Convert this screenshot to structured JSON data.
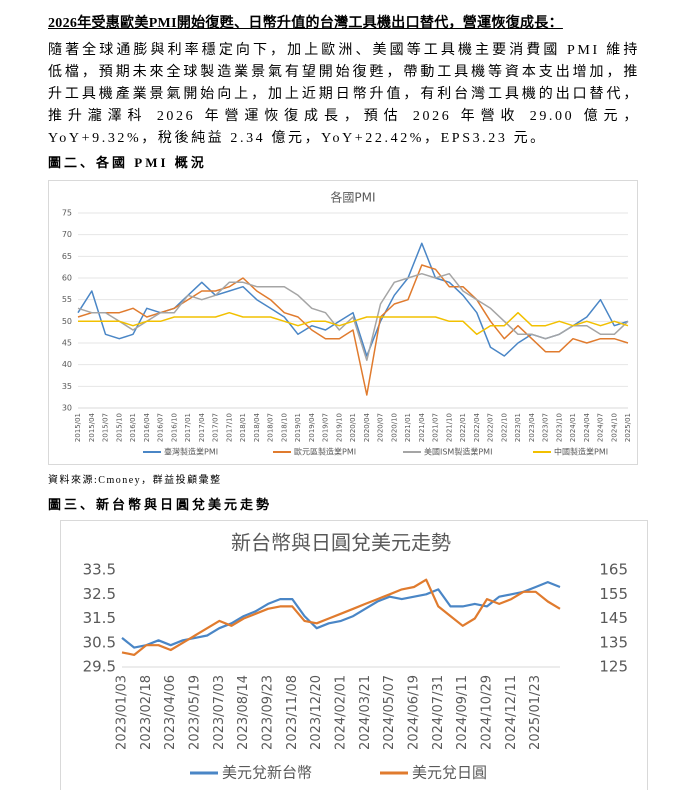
{
  "document": {
    "title": "2026年受惠歐美PMI開始復甦、日幣升值的台灣工具機出口替代，營運恢復成長：",
    "paragraph": "隨著全球通膨與利率穩定向下，加上歐洲、美國等工具機主要消費國 PMI 維持低檔，預期未來全球製造業景氣有望開始復甦，帶動工具機等資本支出增加，推升工具機產業景氣開始向上，加上近期日幣升值，有利台灣工具機的出口替代，推升瀧澤科 2026 年營運恢復成長，預估 2026 年營收 29.00 億元，YoY+9.32%，稅後純益 2.34 億元，YoY+22.42%，EPS3.23 元。",
    "figure2_caption": "圖二、各國 PMI 概況",
    "source": "資料來源:Cmoney，群益投顧彙整",
    "figure3_caption": "圖三、新台幣與日圓兌美元走勢"
  },
  "chart_data": [
    {
      "type": "line",
      "title": "各國PMI",
      "categories": [
        "2015/01",
        "2015/04",
        "2015/07",
        "2015/10",
        "2016/01",
        "2016/04",
        "2016/07",
        "2016/10",
        "2017/01",
        "2017/04",
        "2017/07",
        "2017/10",
        "2018/01",
        "2018/04",
        "2018/07",
        "2018/10",
        "2019/01",
        "2019/04",
        "2019/07",
        "2019/10",
        "2020/01",
        "2020/04",
        "2020/07",
        "2020/10",
        "2021/01",
        "2021/04",
        "2021/07",
        "2021/10",
        "2022/01",
        "2022/04",
        "2022/07",
        "2022/10",
        "2023/01",
        "2023/04",
        "2023/07",
        "2023/10",
        "2024/01",
        "2024/04",
        "2024/07",
        "2024/10",
        "2025/01"
      ],
      "ylim": [
        30,
        75
      ],
      "yticks": [
        30,
        35,
        40,
        45,
        50,
        55,
        60,
        65,
        70,
        75
      ],
      "grid": true,
      "series": [
        {
          "name": "臺灣製造業PMI",
          "color": "#4a86c6",
          "values": [
            52,
            57,
            47,
            46,
            47,
            53,
            52,
            53,
            56,
            59,
            56,
            57,
            58,
            55,
            53,
            51,
            47,
            49,
            48,
            50,
            52,
            42,
            50,
            56,
            60,
            68,
            60,
            59,
            56,
            52,
            44,
            42,
            45,
            47,
            46,
            47,
            49,
            51,
            55,
            49,
            50
          ]
        },
        {
          "name": "歐元區製造業PMI",
          "color": "#e07b2e",
          "values": [
            51,
            52,
            52,
            52,
            53,
            51,
            52,
            53,
            55,
            57,
            57,
            58,
            60,
            57,
            55,
            52,
            51,
            48,
            46,
            46,
            48,
            33,
            51,
            54,
            55,
            63,
            62,
            58,
            58,
            55,
            50,
            46,
            49,
            46,
            43,
            43,
            46,
            45,
            46,
            46,
            45
          ]
        },
        {
          "name": "美國ISM製造業PMI",
          "color": "#a5a5a5",
          "values": [
            53,
            52,
            52,
            50,
            48,
            50,
            52,
            52,
            56,
            55,
            56,
            59,
            59,
            58,
            58,
            58,
            56,
            53,
            52,
            48,
            51,
            41,
            54,
            59,
            60,
            61,
            60,
            61,
            57,
            55,
            53,
            50,
            47,
            47,
            46,
            47,
            49,
            49,
            47,
            47,
            50
          ]
        },
        {
          "name": "中國製造業PMI",
          "color": "#f2c000",
          "values": [
            50,
            50,
            50,
            50,
            49,
            50,
            50,
            51,
            51,
            51,
            51,
            52,
            51,
            51,
            51,
            50,
            49,
            50,
            50,
            49,
            50,
            51,
            51,
            51,
            51,
            51,
            51,
            50,
            50,
            47,
            49,
            49,
            52,
            49,
            49,
            50,
            49,
            50,
            49,
            50,
            49
          ]
        }
      ]
    },
    {
      "type": "line",
      "title": "新台幣與日圓兌美元走勢",
      "categories": [
        "2023/01/03",
        null,
        "2023/02/18",
        null,
        "2023/04/06",
        null,
        "2023/05/19",
        null,
        "2023/07/03",
        null,
        "2023/08/14",
        null,
        "2023/09/23",
        null,
        "2023/11/08",
        null,
        "2023/12/20",
        null,
        "2024/02/01",
        null,
        "2024/03/21",
        null,
        "2024/05/07",
        null,
        "2024/06/19",
        null,
        "2024/07/31",
        null,
        "2024/09/11",
        null,
        "2024/10/29",
        null,
        "2024/12/11",
        null,
        "2025/01/23",
        null,
        null
      ],
      "ylim": [
        29.5,
        33.5
      ],
      "yticks": [
        29.5,
        30.5,
        31.5,
        32.5,
        33.5
      ],
      "y2lim": [
        125,
        165
      ],
      "y2ticks": [
        125,
        135,
        145,
        155,
        165
      ],
      "grid": false,
      "series": [
        {
          "name": "美元兌新台幣",
          "color": "#4a86c6",
          "values": [
            30.7,
            30.3,
            30.4,
            30.6,
            30.4,
            30.6,
            30.7,
            30.8,
            31.1,
            31.3,
            31.6,
            31.8,
            32.1,
            32.3,
            32.3,
            31.6,
            31.1,
            31.3,
            31.4,
            31.6,
            31.9,
            32.2,
            32.4,
            32.3,
            32.4,
            32.5,
            32.7,
            32.0,
            32.0,
            32.1,
            32.0,
            32.4,
            32.5,
            32.6,
            32.8,
            33.0,
            32.8
          ]
        },
        {
          "name": "美元兌日圓",
          "color": "#e07b2e",
          "axis": "y2",
          "values": [
            131,
            130,
            134,
            134,
            132,
            135,
            138,
            141,
            144,
            142,
            145,
            147,
            149,
            150,
            150,
            144,
            143,
            145,
            147,
            149,
            151,
            153,
            155,
            157,
            158,
            161,
            150,
            146,
            142,
            145,
            153,
            151,
            153,
            156,
            156,
            152,
            149
          ]
        }
      ]
    }
  ]
}
